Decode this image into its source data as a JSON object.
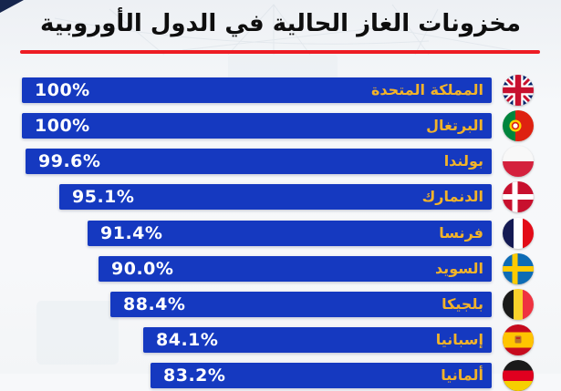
{
  "header": {
    "title": "مخزونات الغاز الحالية في الدول الأوروبية"
  },
  "colors": {
    "bar": "#1539c0",
    "country_label": "#F2B32A",
    "value_text": "#ffffff",
    "title_underline": "#ED1C24",
    "title_text": "#0e0e0e",
    "background": "#f6f8fa"
  },
  "chart_data": {
    "type": "bar",
    "orientation": "horizontal",
    "title": "مخزونات الغاز الحالية في الدول الأوروبية",
    "unit": "%",
    "categories": [
      "المملكة المتحدة",
      "البرتغال",
      "بولندا",
      "الدنمارك",
      "فرنسا",
      "السويد",
      "بلجيكا",
      "إسبانيا",
      "ألمانيا"
    ],
    "values": [
      100,
      100,
      99.6,
      95.1,
      91.4,
      90.0,
      88.4,
      84.1,
      83.2
    ],
    "value_labels": [
      "100%",
      "100%",
      "99.6%",
      "95.1%",
      "91.4%",
      "90.0%",
      "88.4%",
      "84.1%",
      "83.2%"
    ],
    "flag_icons": [
      "uk-flag-icon",
      "portugal-flag-icon",
      "poland-flag-icon",
      "denmark-flag-icon",
      "france-flag-icon",
      "sweden-flag-icon",
      "belgium-flag-icon",
      "spain-flag-icon",
      "germany-flag-icon"
    ],
    "bars_sorted": "descending",
    "axis": "none",
    "legend": "none",
    "xlim": [
      38.5,
      100
    ],
    "last_row_clipped_by_frame": true
  }
}
